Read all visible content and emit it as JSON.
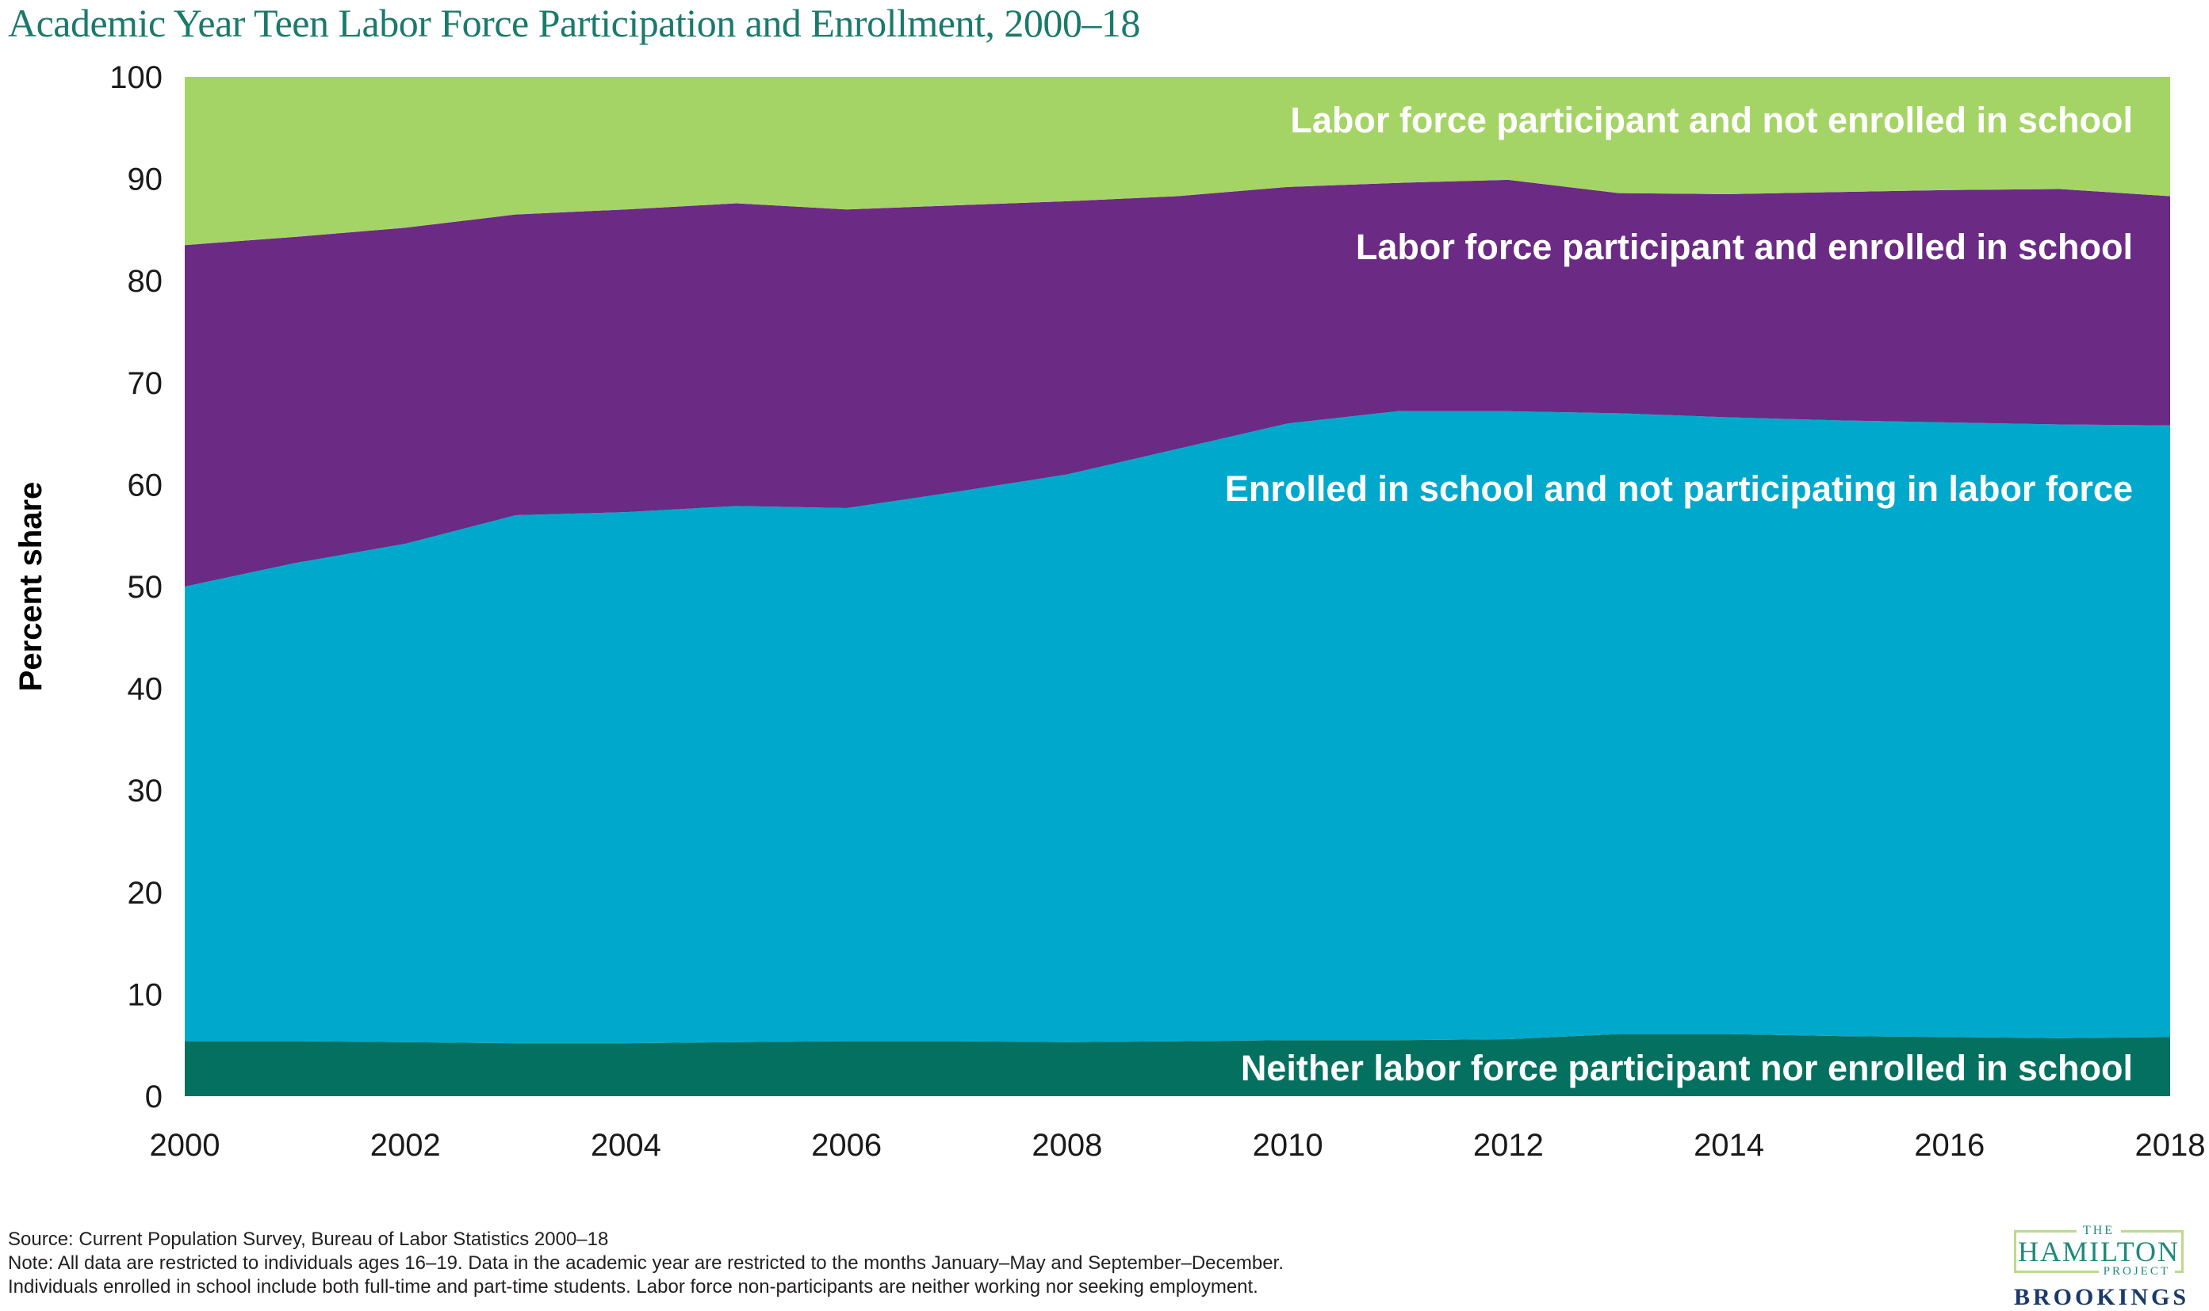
{
  "title": "Academic Year Teen Labor Force Participation and Enrollment, 2000–18",
  "title_color": "#1a7a6c",
  "chart_data": {
    "type": "area",
    "stacked": true,
    "title": "Academic Year Teen Labor Force Participation and Enrollment, 2000–18",
    "xlabel": "",
    "ylabel": "Percent share",
    "ylim": [
      0,
      100
    ],
    "grid": false,
    "legend_position": "labels drawn inside each area, right-aligned",
    "x": [
      2000,
      2001,
      2002,
      2003,
      2004,
      2005,
      2006,
      2007,
      2008,
      2009,
      2010,
      2011,
      2012,
      2013,
      2014,
      2015,
      2016,
      2017,
      2018
    ],
    "xticks": [
      2000,
      2002,
      2004,
      2006,
      2008,
      2010,
      2012,
      2014,
      2016,
      2018
    ],
    "yticks": [
      0,
      10,
      20,
      30,
      40,
      50,
      60,
      70,
      80,
      90,
      100
    ],
    "series": [
      {
        "id": "neither",
        "name": "Neither labor force participant nor enrolled in school",
        "color": "#04705f",
        "values": [
          5.4,
          5.4,
          5.3,
          5.2,
          5.2,
          5.3,
          5.4,
          5.4,
          5.3,
          5.4,
          5.5,
          5.5,
          5.6,
          6.1,
          6.1,
          5.9,
          5.8,
          5.7,
          5.8
        ]
      },
      {
        "id": "enrolled-not-lf",
        "name": "Enrolled in school and not participating in labor force",
        "color": "#00a9cc",
        "values": [
          44.6,
          46.9,
          48.9,
          51.8,
          52.1,
          52.6,
          52.3,
          53.9,
          55.7,
          58.1,
          60.5,
          61.7,
          61.6,
          60.9,
          60.5,
          60.4,
          60.3,
          60.2,
          60.0
        ]
      },
      {
        "id": "lf-enrolled",
        "name": "Labor force participant and enrolled in school",
        "color": "#6b2a84",
        "values": [
          33.5,
          32.0,
          31.0,
          29.5,
          29.7,
          29.7,
          29.3,
          28.1,
          26.8,
          24.8,
          23.2,
          22.4,
          22.7,
          21.6,
          21.9,
          22.4,
          22.8,
          23.1,
          22.5
        ]
      },
      {
        "id": "lf-not-enrolled",
        "name": "Labor force participant and not enrolled in school",
        "color": "#a5d466",
        "values": [
          16.5,
          15.7,
          14.8,
          13.5,
          13.0,
          12.4,
          13.0,
          12.6,
          12.2,
          11.7,
          10.8,
          10.4,
          10.1,
          11.4,
          11.5,
          11.3,
          11.1,
          11.0,
          11.7
        ]
      }
    ],
    "cumulative_boundaries_note": "cumulative tops: neither ~5.5; +cyan ~50 (2000) rising to ~67 (2011-12) then ~66 (2018); +purple ~83.5 (2000) to ~90 (2012) to ~88.3 (2018); total 100"
  },
  "notes": {
    "source": "Source: Current Population Survey, Bureau of Labor Statistics 2000–18",
    "note_line1": "Note: All data are restricted to individuals ages 16–19. Data in the academic year are restricted to the months January–May and September–December.",
    "note_line2": "Individuals enrolled in school include both full-time and part-time students. Labor force non-participants are neither working nor seeking employment."
  },
  "logo": {
    "the": "THE",
    "hamilton": "HAMILTON",
    "project": "PROJECT",
    "brookings": "BROOKINGS",
    "teal": "#1e8a7a",
    "navy": "#1a3a6b",
    "border_green": "#bcd98f"
  }
}
